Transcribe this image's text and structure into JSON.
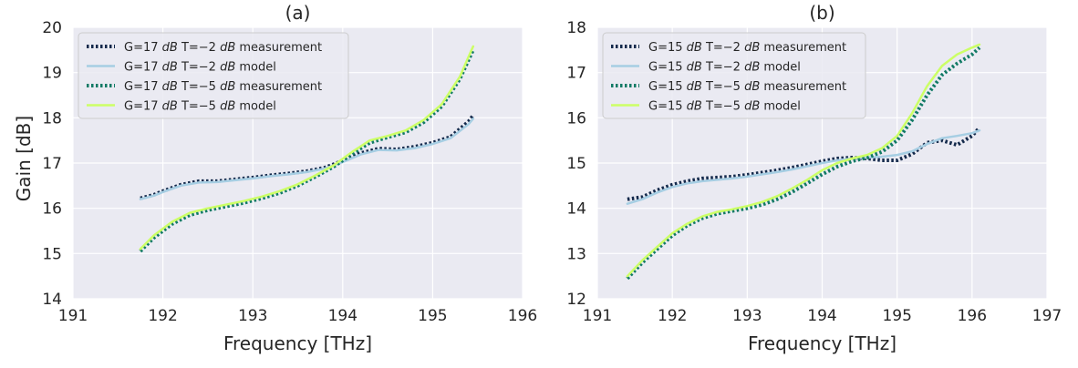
{
  "figure": {
    "ylabel_shared": "Gain [dB]",
    "colors": {
      "background": "#eaeaf2",
      "grid": "#ffffff",
      "legend_bg": "#eaeaf2",
      "legend_border": "#cccccc"
    }
  },
  "chart_data": [
    {
      "type": "line",
      "title": "(a)",
      "xlabel": "Frequency [THz]",
      "ylabel": "Gain [dB]",
      "xlim": [
        191,
        196
      ],
      "ylim": [
        14,
        20
      ],
      "xticks": [
        "191",
        "192",
        "193",
        "194",
        "195",
        "196"
      ],
      "yticks": [
        "14",
        "15",
        "16",
        "17",
        "18",
        "19",
        "20"
      ],
      "grid": true,
      "legend_position": "upper-left",
      "series": [
        {
          "name": "G=17 dB T=−2 dB measurement",
          "name_parts": [
            "G=17 ",
            "dB",
            " T=−2 ",
            "dB",
            " measurement"
          ],
          "style": "dotted",
          "color": "#13294b",
          "x": [
            191.75,
            191.9,
            192.0,
            192.2,
            192.4,
            192.6,
            192.8,
            193.0,
            193.2,
            193.4,
            193.6,
            193.8,
            194.0,
            194.2,
            194.4,
            194.6,
            194.8,
            195.0,
            195.2,
            195.4,
            195.45
          ],
          "y": [
            16.22,
            16.3,
            16.38,
            16.52,
            16.6,
            16.6,
            16.64,
            16.68,
            16.73,
            16.77,
            16.82,
            16.9,
            17.05,
            17.22,
            17.32,
            17.3,
            17.36,
            17.45,
            17.58,
            17.92,
            18.05
          ]
        },
        {
          "name": "G=17 dB T=−2 dB model",
          "name_parts": [
            "G=17 ",
            "dB",
            " T=−2 ",
            "dB",
            " model"
          ],
          "style": "solid",
          "color": "#a6cee3",
          "x": [
            191.75,
            191.9,
            192.0,
            192.2,
            192.4,
            192.6,
            192.8,
            193.0,
            193.2,
            193.4,
            193.6,
            193.8,
            194.0,
            194.2,
            194.4,
            194.6,
            194.8,
            195.0,
            195.2,
            195.4,
            195.45
          ],
          "y": [
            16.2,
            16.28,
            16.36,
            16.5,
            16.57,
            16.58,
            16.62,
            16.66,
            16.71,
            16.75,
            16.8,
            16.88,
            17.02,
            17.19,
            17.29,
            17.28,
            17.33,
            17.42,
            17.55,
            17.86,
            17.98
          ]
        },
        {
          "name": "G=17 dB T=−5 dB measurement",
          "name_parts": [
            "G=17 ",
            "dB",
            " T=−5 ",
            "dB",
            " measurement"
          ],
          "style": "dotted",
          "color": "#117a65",
          "x": [
            191.75,
            191.9,
            192.1,
            192.3,
            192.5,
            192.7,
            192.9,
            193.1,
            193.3,
            193.5,
            193.7,
            193.9,
            194.1,
            194.3,
            194.5,
            194.7,
            194.9,
            195.1,
            195.3,
            195.45
          ],
          "y": [
            15.05,
            15.35,
            15.65,
            15.85,
            15.96,
            16.04,
            16.12,
            16.22,
            16.34,
            16.5,
            16.7,
            16.92,
            17.2,
            17.45,
            17.57,
            17.68,
            17.9,
            18.25,
            18.85,
            19.5
          ]
        },
        {
          "name": "G=17 dB T=−5 dB model",
          "name_parts": [
            "G=17 ",
            "dB",
            " T=−5 ",
            "dB",
            " model"
          ],
          "style": "solid",
          "color": "#ccff66",
          "x": [
            191.75,
            191.9,
            192.1,
            192.3,
            192.5,
            192.7,
            192.9,
            193.1,
            193.3,
            193.5,
            193.7,
            193.9,
            194.1,
            194.3,
            194.5,
            194.7,
            194.9,
            195.1,
            195.3,
            195.45
          ],
          "y": [
            15.1,
            15.4,
            15.7,
            15.9,
            16.0,
            16.08,
            16.16,
            16.26,
            16.38,
            16.53,
            16.73,
            16.95,
            17.24,
            17.5,
            17.6,
            17.72,
            17.95,
            18.3,
            18.9,
            19.58
          ]
        }
      ]
    },
    {
      "type": "line",
      "title": "(b)",
      "xlabel": "Frequency [THz]",
      "ylabel": "",
      "xlim": [
        191,
        197
      ],
      "ylim": [
        12,
        18
      ],
      "xticks": [
        "191",
        "192",
        "193",
        "194",
        "195",
        "196",
        "197"
      ],
      "yticks": [
        "12",
        "13",
        "14",
        "15",
        "16",
        "17",
        "18"
      ],
      "grid": true,
      "legend_position": "upper-left",
      "series": [
        {
          "name": "G=15 dB T=−2 dB measurement",
          "name_parts": [
            "G=15 ",
            "dB",
            " T=−2 ",
            "dB",
            " measurement"
          ],
          "style": "dotted",
          "color": "#13294b",
          "x": [
            191.4,
            191.6,
            191.8,
            192.0,
            192.2,
            192.4,
            192.6,
            192.8,
            193.0,
            193.2,
            193.4,
            193.6,
            193.8,
            194.0,
            194.2,
            194.4,
            194.6,
            194.8,
            195.0,
            195.2,
            195.4,
            195.6,
            195.8,
            196.0,
            196.1
          ],
          "y": [
            14.2,
            14.25,
            14.4,
            14.52,
            14.6,
            14.66,
            14.68,
            14.7,
            14.74,
            14.79,
            14.84,
            14.9,
            14.97,
            15.04,
            15.1,
            15.12,
            15.1,
            15.06,
            15.06,
            15.2,
            15.45,
            15.5,
            15.4,
            15.6,
            15.78
          ]
        },
        {
          "name": "G=15 dB T=−2 dB model",
          "name_parts": [
            "G=15 ",
            "dB",
            " T=−2 ",
            "dB",
            " model"
          ],
          "style": "solid",
          "color": "#a6cee3",
          "x": [
            191.4,
            191.6,
            191.8,
            192.0,
            192.2,
            192.4,
            192.6,
            192.8,
            193.0,
            193.2,
            193.4,
            193.6,
            193.8,
            194.0,
            194.2,
            194.4,
            194.6,
            194.8,
            195.0,
            195.2,
            195.4,
            195.6,
            195.8,
            196.0,
            196.1
          ],
          "y": [
            14.1,
            14.2,
            14.35,
            14.47,
            14.55,
            14.6,
            14.63,
            14.66,
            14.7,
            14.75,
            14.8,
            14.86,
            14.93,
            15.0,
            15.06,
            15.1,
            15.12,
            15.14,
            15.18,
            15.26,
            15.42,
            15.55,
            15.6,
            15.66,
            15.72
          ]
        },
        {
          "name": "G=15 dB T=−5 dB measurement",
          "name_parts": [
            "G=15 ",
            "dB",
            " T=−5 ",
            "dB",
            " measurement"
          ],
          "style": "dotted",
          "color": "#117a65",
          "x": [
            191.4,
            191.6,
            191.8,
            192.0,
            192.2,
            192.4,
            192.6,
            192.8,
            193.0,
            193.2,
            193.4,
            193.6,
            193.8,
            194.0,
            194.2,
            194.4,
            194.6,
            194.8,
            195.0,
            195.2,
            195.4,
            195.6,
            195.8,
            196.0,
            196.1
          ],
          "y": [
            12.45,
            12.8,
            13.1,
            13.4,
            13.62,
            13.78,
            13.88,
            13.94,
            14.0,
            14.08,
            14.2,
            14.36,
            14.55,
            14.75,
            14.92,
            15.04,
            15.12,
            15.25,
            15.5,
            15.95,
            16.5,
            16.95,
            17.2,
            17.4,
            17.55
          ]
        },
        {
          "name": "G=15 dB T=−5 dB  model",
          "name_parts": [
            "G=15 ",
            "dB",
            " T=−5 ",
            "dB",
            "  model"
          ],
          "style": "solid",
          "color": "#ccff66",
          "x": [
            191.4,
            191.6,
            191.8,
            192.0,
            192.2,
            192.4,
            192.6,
            192.8,
            193.0,
            193.2,
            193.4,
            193.6,
            193.8,
            194.0,
            194.2,
            194.4,
            194.6,
            194.8,
            195.0,
            195.2,
            195.4,
            195.6,
            195.8,
            196.0,
            196.1
          ],
          "y": [
            12.5,
            12.85,
            13.15,
            13.45,
            13.66,
            13.82,
            13.92,
            13.98,
            14.05,
            14.14,
            14.27,
            14.44,
            14.63,
            14.84,
            15.0,
            15.1,
            15.18,
            15.33,
            15.6,
            16.1,
            16.7,
            17.15,
            17.4,
            17.55,
            17.62
          ]
        }
      ]
    }
  ]
}
